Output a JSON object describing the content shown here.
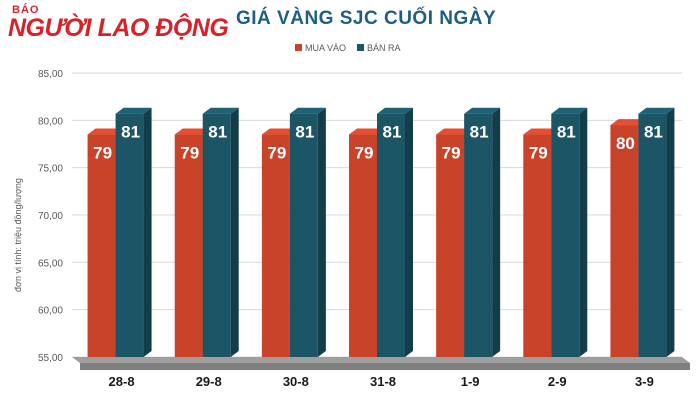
{
  "logo": {
    "small": "BÁO",
    "main": "NGƯỜI LAO ĐỘNG"
  },
  "colors": {
    "buy": "#c9432a",
    "sell": "#1b5566",
    "title": "#1e5f80",
    "brand": "#d6232b"
  },
  "chart_data": {
    "type": "bar",
    "title": "GIÁ VÀNG SJC CUỐI NGÀY",
    "ylabel": "đơn vị tính: triệu đồng/lượng",
    "xlabel": "",
    "ylim": [
      55,
      85
    ],
    "yticks": [
      "55,00",
      "60,00",
      "65,00",
      "70,00",
      "75,00",
      "80,00",
      "85,00"
    ],
    "legend_position": "top-center",
    "grid": true,
    "categories": [
      "28-8",
      "29-8",
      "30-8",
      "31-8",
      "1-9",
      "2-9",
      "3-9"
    ],
    "series": [
      {
        "name": "MUA VÀO",
        "values": [
          78.5,
          78.5,
          78.5,
          78.5,
          78.5,
          78.5,
          79.5
        ],
        "labels": [
          "79",
          "79",
          "79",
          "79",
          "79",
          "79",
          "80"
        ]
      },
      {
        "name": "BÁN RA",
        "values": [
          80.7,
          80.7,
          80.7,
          80.7,
          80.7,
          80.7,
          80.7
        ],
        "labels": [
          "81",
          "81",
          "81",
          "81",
          "81",
          "81",
          "81"
        ]
      }
    ]
  }
}
